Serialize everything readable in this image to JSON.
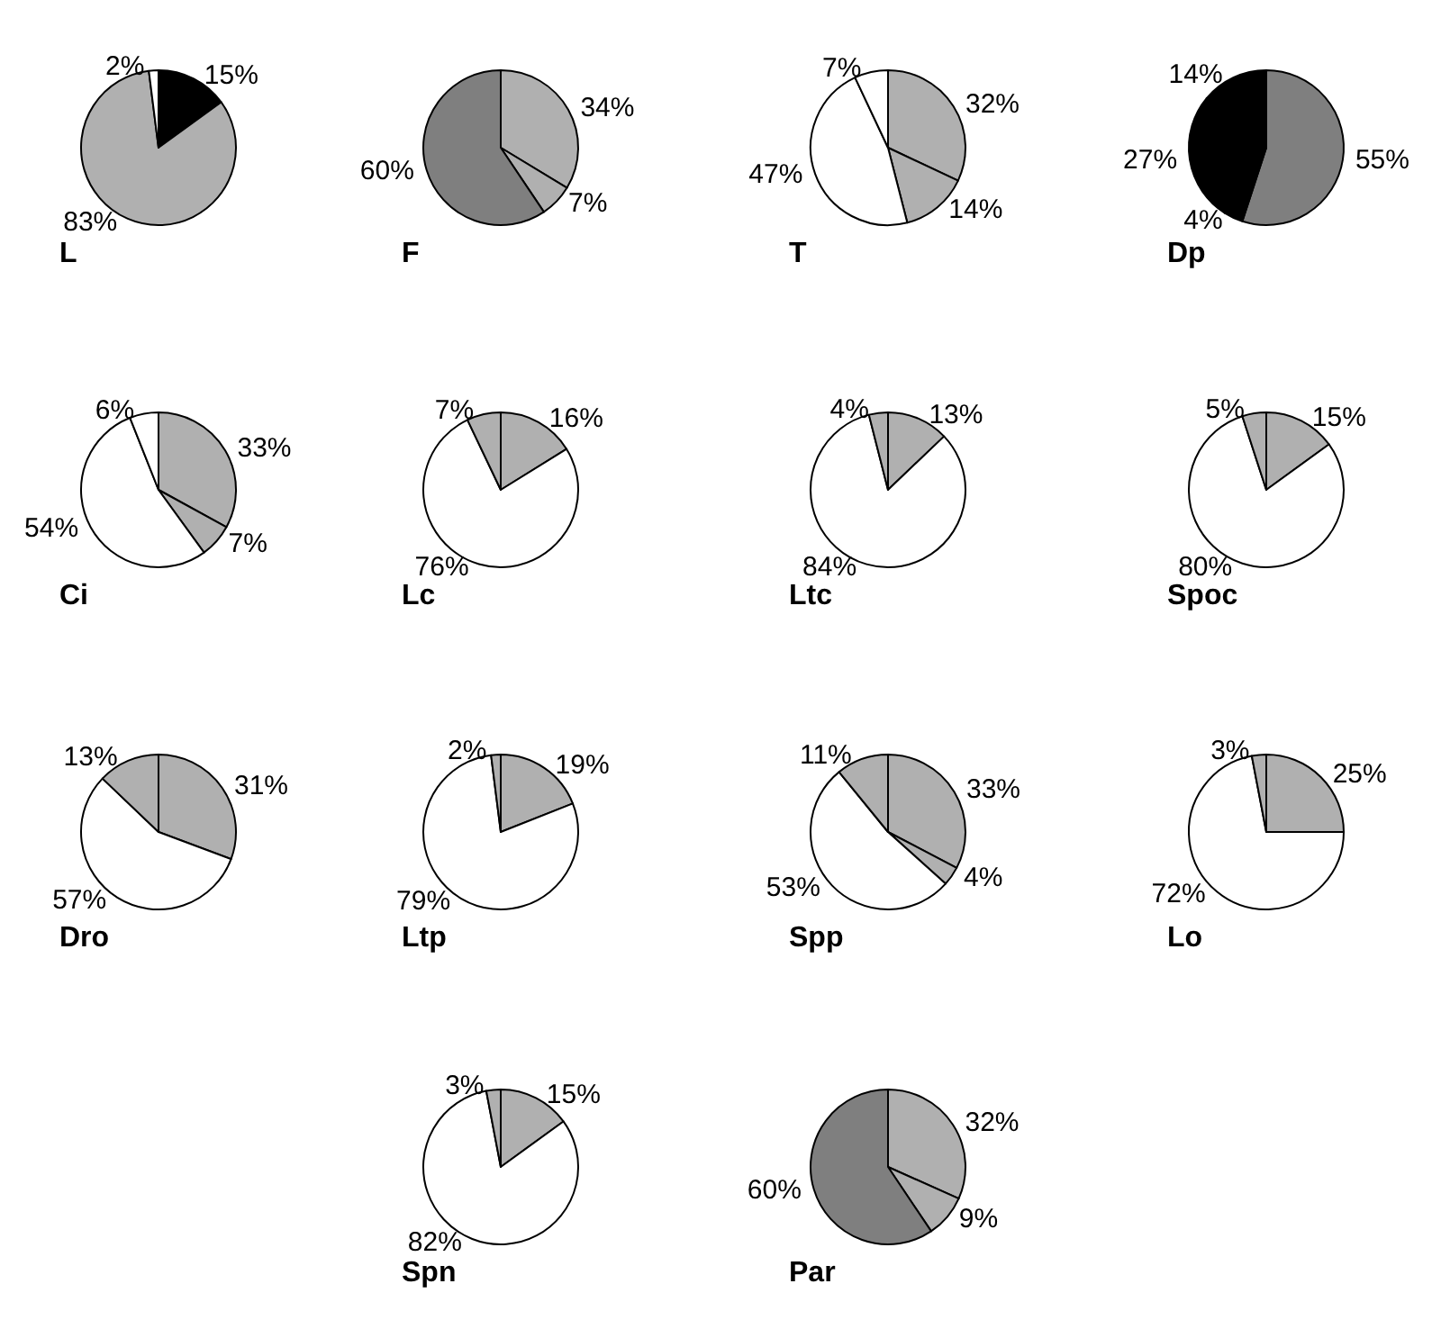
{
  "chart_data": [
    {
      "type": "pie",
      "title": "L",
      "categories": [
        null,
        null,
        null
      ],
      "values": [
        15,
        83,
        2
      ],
      "value_labels": [
        "15%",
        "83%",
        "2%"
      ],
      "colors": [
        "#000000",
        "#b0b0b0",
        "#ffffff"
      ]
    },
    {
      "type": "pie",
      "title": "F",
      "categories": [
        null,
        null,
        null
      ],
      "values": [
        34,
        7,
        60
      ],
      "value_labels": [
        "34%",
        "7%",
        "60%"
      ],
      "colors": [
        "#b0b0b0",
        "#b0b0b0",
        "#7f7f7f"
      ]
    },
    {
      "type": "pie",
      "title": "T",
      "categories": [
        null,
        null,
        null,
        null
      ],
      "values": [
        32,
        14,
        47,
        7
      ],
      "value_labels": [
        "32%",
        "14%",
        "47%",
        "7%"
      ],
      "colors": [
        "#b0b0b0",
        "#b0b0b0",
        "#ffffff",
        "#ffffff"
      ]
    },
    {
      "type": "pie",
      "title": "Dp",
      "categories": [
        null,
        null,
        null,
        null
      ],
      "values": [
        55,
        4,
        27,
        14
      ],
      "value_labels": [
        "55%",
        "4%",
        "27%",
        "14%"
      ],
      "colors": [
        "#7f7f7f",
        "#000000",
        "#000000",
        "#000000"
      ]
    },
    {
      "type": "pie",
      "title": "Ci",
      "categories": [
        null,
        null,
        null,
        null
      ],
      "values": [
        33,
        7,
        54,
        6
      ],
      "value_labels": [
        "33%",
        "7%",
        "54%",
        "6%"
      ],
      "colors": [
        "#b0b0b0",
        "#b0b0b0",
        "#ffffff",
        "#ffffff"
      ]
    },
    {
      "type": "pie",
      "title": "Lc",
      "categories": [
        null,
        null,
        null
      ],
      "values": [
        16,
        76,
        7
      ],
      "value_labels": [
        "16%",
        "76%",
        "7%"
      ],
      "colors": [
        "#b0b0b0",
        "#ffffff",
        "#b0b0b0"
      ]
    },
    {
      "type": "pie",
      "title": "Ltc",
      "categories": [
        null,
        null,
        null
      ],
      "values": [
        13,
        84,
        4
      ],
      "value_labels": [
        "13%",
        "84%",
        "4%"
      ],
      "colors": [
        "#b0b0b0",
        "#ffffff",
        "#b0b0b0"
      ]
    },
    {
      "type": "pie",
      "title": "Spoc",
      "categories": [
        null,
        null,
        null
      ],
      "values": [
        15,
        80,
        5
      ],
      "value_labels": [
        "15%",
        "80%",
        "5%"
      ],
      "colors": [
        "#b0b0b0",
        "#ffffff",
        "#b0b0b0"
      ]
    },
    {
      "type": "pie",
      "title": "Dro",
      "categories": [
        null,
        null,
        null
      ],
      "values": [
        31,
        57,
        13
      ],
      "value_labels": [
        "31%",
        "57%",
        "13%"
      ],
      "colors": [
        "#b0b0b0",
        "#ffffff",
        "#b0b0b0"
      ]
    },
    {
      "type": "pie",
      "title": "Ltp",
      "categories": [
        null,
        null,
        null
      ],
      "values": [
        19,
        79,
        2
      ],
      "value_labels": [
        "19%",
        "79%",
        "2%"
      ],
      "colors": [
        "#b0b0b0",
        "#ffffff",
        "#b0b0b0"
      ]
    },
    {
      "type": "pie",
      "title": "Spp",
      "categories": [
        null,
        null,
        null,
        null
      ],
      "values": [
        33,
        4,
        53,
        11
      ],
      "value_labels": [
        "33%",
        "4%",
        "53%",
        "11%"
      ],
      "colors": [
        "#b0b0b0",
        "#b0b0b0",
        "#ffffff",
        "#b0b0b0"
      ]
    },
    {
      "type": "pie",
      "title": "Lo",
      "categories": [
        null,
        null,
        null
      ],
      "values": [
        25,
        72,
        3
      ],
      "value_labels": [
        "25%",
        "72%",
        "3%"
      ],
      "colors": [
        "#b0b0b0",
        "#ffffff",
        "#b0b0b0"
      ]
    },
    {
      "type": "pie",
      "title": "Spn",
      "categories": [
        null,
        null,
        null
      ],
      "values": [
        15,
        82,
        3
      ],
      "value_labels": [
        "15%",
        "82%",
        "3%"
      ],
      "colors": [
        "#b0b0b0",
        "#ffffff",
        "#b0b0b0"
      ]
    },
    {
      "type": "pie",
      "title": "Par",
      "categories": [
        null,
        null,
        null
      ],
      "values": [
        32,
        9,
        60
      ],
      "value_labels": [
        "32%",
        "9%",
        "60%"
      ],
      "colors": [
        "#b0b0b0",
        "#b0b0b0",
        "#7f7f7f"
      ]
    }
  ]
}
